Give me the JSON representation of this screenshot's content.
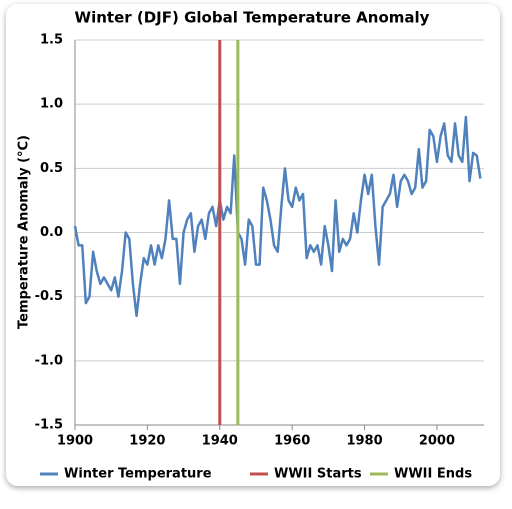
{
  "chart_data": {
    "type": "line",
    "title": "Winter (DJF) Global Temperature Anomaly",
    "y_label": "Temperature Anomaly (°C)",
    "x": [
      1900,
      1901,
      1902,
      1903,
      1904,
      1905,
      1906,
      1907,
      1908,
      1909,
      1910,
      1911,
      1912,
      1913,
      1914,
      1915,
      1916,
      1917,
      1918,
      1919,
      1920,
      1921,
      1922,
      1923,
      1924,
      1925,
      1926,
      1927,
      1928,
      1929,
      1930,
      1931,
      1932,
      1933,
      1934,
      1935,
      1936,
      1937,
      1938,
      1939,
      1940,
      1941,
      1942,
      1943,
      1944,
      1945,
      1946,
      1947,
      1948,
      1949,
      1950,
      1951,
      1952,
      1953,
      1954,
      1955,
      1956,
      1957,
      1958,
      1959,
      1960,
      1961,
      1962,
      1963,
      1964,
      1965,
      1966,
      1967,
      1968,
      1969,
      1970,
      1971,
      1972,
      1973,
      1974,
      1975,
      1976,
      1977,
      1978,
      1979,
      1980,
      1981,
      1982,
      1983,
      1984,
      1985,
      1986,
      1987,
      1988,
      1989,
      1990,
      1991,
      1992,
      1993,
      1994,
      1995,
      1996,
      1997,
      1998,
      1999,
      2000,
      2001,
      2002,
      2003,
      2004,
      2005,
      2006,
      2007,
      2008,
      2009,
      2010,
      2011,
      2012
    ],
    "series": [
      {
        "name": "Winter Temperature",
        "color": "#4f81bd",
        "values": [
          0.05,
          -0.1,
          -0.1,
          -0.55,
          -0.5,
          -0.15,
          -0.3,
          -0.4,
          -0.35,
          -0.4,
          -0.45,
          -0.35,
          -0.5,
          -0.3,
          0.0,
          -0.05,
          -0.4,
          -0.65,
          -0.4,
          -0.2,
          -0.25,
          -0.1,
          -0.25,
          -0.1,
          -0.2,
          -0.05,
          0.25,
          -0.05,
          -0.05,
          -0.4,
          0.0,
          0.1,
          0.15,
          -0.15,
          0.05,
          0.1,
          -0.05,
          0.15,
          0.2,
          0.05,
          0.25,
          0.1,
          0.2,
          0.15,
          0.6,
          0.0,
          -0.05,
          -0.25,
          0.1,
          0.05,
          -0.25,
          -0.25,
          0.35,
          0.25,
          0.1,
          -0.1,
          -0.15,
          0.2,
          0.5,
          0.25,
          0.2,
          0.35,
          0.25,
          0.3,
          -0.2,
          -0.1,
          -0.15,
          -0.1,
          -0.25,
          0.05,
          -0.1,
          -0.3,
          0.25,
          -0.15,
          -0.05,
          -0.1,
          -0.05,
          0.15,
          0.0,
          0.25,
          0.45,
          0.3,
          0.45,
          0.05,
          -0.25,
          0.2,
          0.25,
          0.3,
          0.45,
          0.2,
          0.4,
          0.45,
          0.4,
          0.3,
          0.35,
          0.65,
          0.35,
          0.4,
          0.8,
          0.75,
          0.55,
          0.75,
          0.85,
          0.6,
          0.55,
          0.85,
          0.6,
          0.55,
          0.9,
          0.4,
          0.62,
          0.6,
          0.42
        ]
      },
      {
        "name": "WWII Starts",
        "color": "#c0504d",
        "x": [
          1940,
          1940
        ],
        "values": [
          -1.5,
          1.5
        ]
      },
      {
        "name": "WWII Ends",
        "color": "#9bbb59",
        "x": [
          1945,
          1945
        ],
        "values": [
          -1.5,
          1.5
        ]
      }
    ],
    "xlim": [
      1900,
      2013
    ],
    "xticks": [
      1900,
      1920,
      1940,
      1960,
      1980,
      2000
    ],
    "ylim": [
      -1.5,
      1.5
    ],
    "yticks": [
      -1.5,
      {
        "value": -1,
        "label": "-1.0"
      },
      -0.5,
      {
        "value": 0,
        "label": "0.0"
      },
      0.5,
      {
        "value": 1,
        "label": "1.0"
      },
      1.5
    ],
    "grid": true,
    "legend": "bottom"
  }
}
